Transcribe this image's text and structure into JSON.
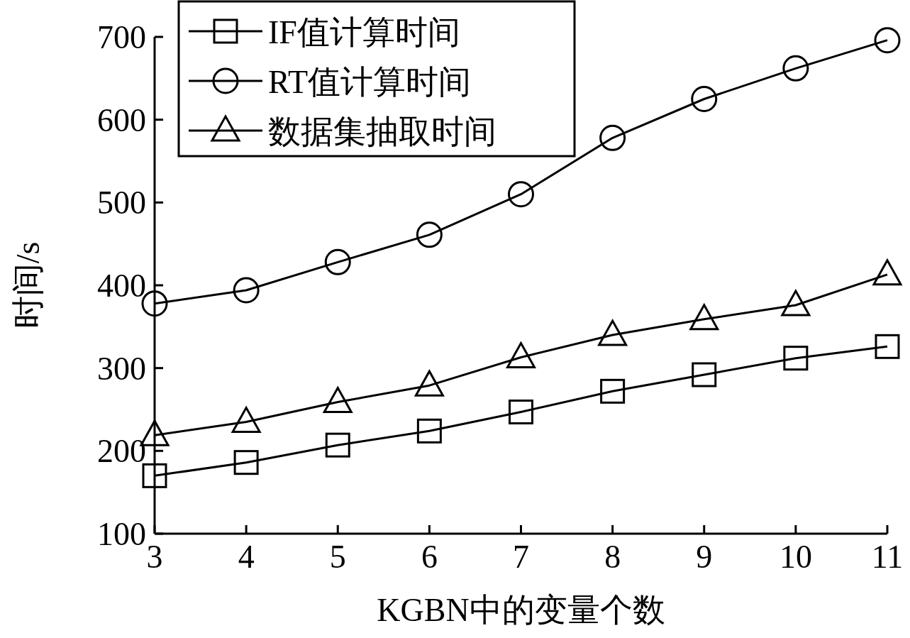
{
  "chart_data": {
    "type": "line",
    "xlabel": "KGBN中的变量个数",
    "ylabel": "时间/s",
    "x": [
      3,
      4,
      5,
      6,
      7,
      8,
      9,
      10,
      11
    ],
    "xlim": [
      3,
      11
    ],
    "xticks": [
      3,
      4,
      5,
      6,
      7,
      8,
      9,
      10,
      11
    ],
    "ylim": [
      100,
      700
    ],
    "yticks": [
      100,
      200,
      300,
      400,
      500,
      600,
      700
    ],
    "legend": "top left",
    "series": [
      {
        "name": "IF值计算时间",
        "color": "#000000",
        "marker": "square",
        "values": [
          170,
          186,
          207,
          224,
          247,
          272,
          292,
          312,
          326
        ]
      },
      {
        "name": "RT值计算时间",
        "color": "#000000",
        "marker": "circle",
        "values": [
          378,
          394,
          428,
          461,
          510,
          578,
          625,
          662,
          696
        ]
      },
      {
        "name": "数据集抽取时间",
        "color": "#000000",
        "marker": "triangle",
        "values": [
          219,
          235,
          259,
          279,
          313,
          340,
          359,
          376,
          413
        ]
      }
    ]
  }
}
